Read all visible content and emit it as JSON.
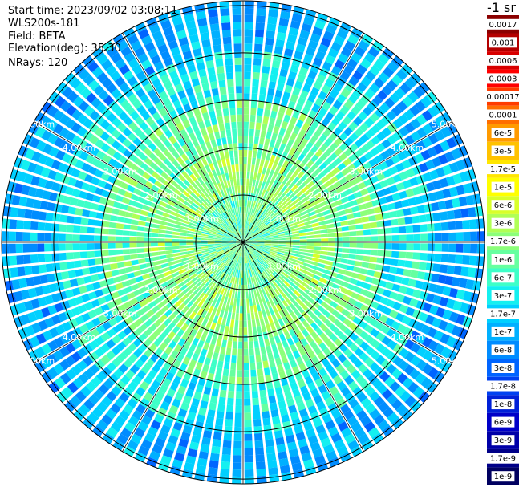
{
  "header": {
    "start_time": "Start time: 2023/09/02 03:08:11",
    "instrument": "WLS200s-181",
    "field": "Field: BETA",
    "elevation": "Elevation(deg): 35.30",
    "nrays": "NRays: 120"
  },
  "colorbar": {
    "unit": "-1 sr",
    "ticks": [
      "0.0017",
      "0.001",
      "0.0006",
      "0.0003",
      "0.00017",
      "0.0001",
      "6e-5",
      "3e-5",
      "1.7e-5",
      "1e-5",
      "6e-6",
      "3e-6",
      "1.7e-6",
      "1e-6",
      "6e-7",
      "3e-7",
      "1.7e-7",
      "1e-7",
      "6e-8",
      "3e-8",
      "1.7e-8",
      "1e-8",
      "6e-9",
      "3e-9",
      "1.7e-9",
      "1e-9"
    ],
    "colors": [
      "#8b0000",
      "#b40000",
      "#d80000",
      "#ff0000",
      "#ff3c00",
      "#ff6e00",
      "#ff9a00",
      "#ffc200",
      "#ffe600",
      "#ffff00",
      "#d9ff2a",
      "#b0ff55",
      "#8cff7a",
      "#66ffa0",
      "#3effc8",
      "#14f0f0",
      "#00d0ff",
      "#00b0ff",
      "#008cff",
      "#0064ff",
      "#0040f0",
      "#0020d8",
      "#0000c8",
      "#0000a8",
      "#000088",
      "#000060"
    ]
  },
  "chart_data": {
    "type": "heatmap",
    "projection": "polar PPI",
    "field": "BETA",
    "elevation_deg": 35.3,
    "n_rays": 120,
    "range_rings_km": [
      1,
      2,
      3,
      4,
      5
    ],
    "ring_labels": [
      "1.00km",
      "2.00km",
      "3.00km",
      "4.00km",
      "5.00km"
    ],
    "max_range_km": 5.1,
    "radials_deg": [
      0,
      30,
      60,
      90,
      120,
      150,
      180,
      210,
      240,
      270,
      300,
      330
    ],
    "log_scale": true,
    "value_range": [
      1e-09,
      0.0017
    ],
    "typical_values_by_range": [
      {
        "range_km": [
          0,
          1
        ],
        "value": 1e-06
      },
      {
        "range_km": [
          1,
          2
        ],
        "value": 1.7e-06
      },
      {
        "range_km": [
          2,
          3
        ],
        "value": 1e-06
      },
      {
        "range_km": [
          3,
          4
        ],
        "value": 3e-07
      },
      {
        "range_km": [
          4,
          5.1
        ],
        "value": 1e-07
      }
    ]
  }
}
